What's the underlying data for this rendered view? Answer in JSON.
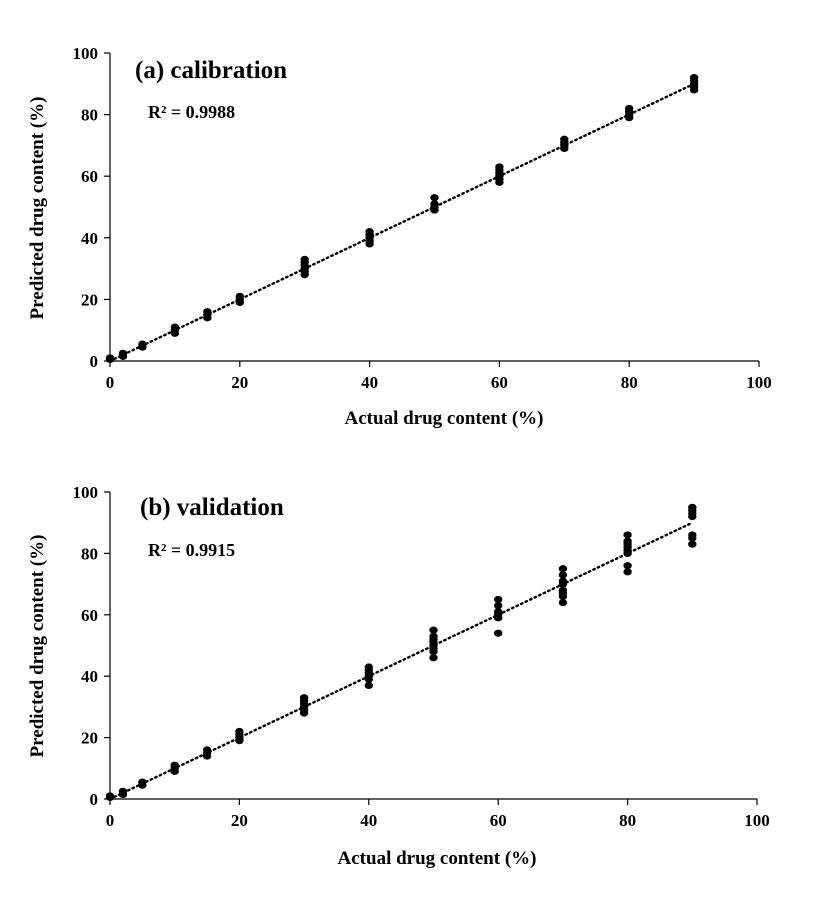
{
  "chart_data": [
    {
      "type": "scatter",
      "title": "(a) calibration",
      "annotation": "R² = 0.9988",
      "xlabel": "Actual drug content (%)",
      "ylabel": "Predicted drug content (%)",
      "xlim": [
        0,
        100
      ],
      "ylim": [
        0,
        100
      ],
      "xticks": [
        "0",
        "20",
        "40",
        "60",
        "80",
        "100"
      ],
      "yticks": [
        "0",
        "20",
        "40",
        "60",
        "80",
        "100"
      ],
      "grid": false,
      "trendline": {
        "style": "dotted",
        "x": [
          0,
          90
        ],
        "y": [
          0,
          90
        ]
      },
      "series": [
        {
          "color": "#000000",
          "points": [
            [
              0,
              0.5
            ],
            [
              0,
              1
            ],
            [
              2,
              1.5
            ],
            [
              2,
              2.5
            ],
            [
              5,
              4.5
            ],
            [
              5,
              5.5
            ],
            [
              10,
              9
            ],
            [
              10,
              10
            ],
            [
              10,
              11
            ],
            [
              15,
              14
            ],
            [
              15,
              15
            ],
            [
              15,
              16
            ],
            [
              20,
              19
            ],
            [
              20,
              20
            ],
            [
              20,
              21
            ],
            [
              30,
              28
            ],
            [
              30,
              29
            ],
            [
              30,
              30
            ],
            [
              30,
              31
            ],
            [
              30,
              32
            ],
            [
              30,
              33
            ],
            [
              40,
              38
            ],
            [
              40,
              39
            ],
            [
              40,
              40
            ],
            [
              40,
              41
            ],
            [
              40,
              42
            ],
            [
              50,
              49
            ],
            [
              50,
              50
            ],
            [
              50,
              51
            ],
            [
              50,
              53
            ],
            [
              60,
              58
            ],
            [
              60,
              59
            ],
            [
              60,
              60
            ],
            [
              60,
              61
            ],
            [
              60,
              62
            ],
            [
              60,
              63
            ],
            [
              70,
              69
            ],
            [
              70,
              70
            ],
            [
              70,
              71
            ],
            [
              70,
              72
            ],
            [
              80,
              79
            ],
            [
              80,
              80
            ],
            [
              80,
              81
            ],
            [
              80,
              82
            ],
            [
              90,
              88
            ],
            [
              90,
              89
            ],
            [
              90,
              90
            ],
            [
              90,
              91
            ],
            [
              90,
              92
            ]
          ]
        }
      ]
    },
    {
      "type": "scatter",
      "title": "(b) validation",
      "annotation": "R² = 0.9915",
      "xlabel": "Actual drug content (%)",
      "ylabel": "Predicted drug content (%)",
      "xlim": [
        0,
        100
      ],
      "ylim": [
        0,
        100
      ],
      "xticks": [
        "0",
        "20",
        "40",
        "60",
        "80",
        "100"
      ],
      "yticks": [
        "0",
        "20",
        "40",
        "60",
        "80",
        "100"
      ],
      "grid": false,
      "trendline": {
        "style": "dotted",
        "x": [
          0,
          90
        ],
        "y": [
          0,
          90
        ]
      },
      "series": [
        {
          "color": "#000000",
          "points": [
            [
              0,
              0.5
            ],
            [
              0,
              1
            ],
            [
              2,
              1.5
            ],
            [
              2,
              2.5
            ],
            [
              5,
              4.5
            ],
            [
              5,
              5.5
            ],
            [
              10,
              9
            ],
            [
              10,
              10
            ],
            [
              10,
              11
            ],
            [
              15,
              14
            ],
            [
              15,
              15
            ],
            [
              15,
              16
            ],
            [
              20,
              19
            ],
            [
              20,
              20
            ],
            [
              20,
              21
            ],
            [
              20,
              22
            ],
            [
              30,
              28
            ],
            [
              30,
              29
            ],
            [
              30,
              30
            ],
            [
              30,
              31
            ],
            [
              30,
              32
            ],
            [
              30,
              33
            ],
            [
              40,
              37
            ],
            [
              40,
              39
            ],
            [
              40,
              40
            ],
            [
              40,
              41
            ],
            [
              40,
              42
            ],
            [
              40,
              43
            ],
            [
              50,
              46
            ],
            [
              50,
              48
            ],
            [
              50,
              49
            ],
            [
              50,
              50
            ],
            [
              50,
              51
            ],
            [
              50,
              52
            ],
            [
              50,
              53
            ],
            [
              50,
              55
            ],
            [
              60,
              54
            ],
            [
              60,
              59
            ],
            [
              60,
              60
            ],
            [
              60,
              61
            ],
            [
              60,
              63
            ],
            [
              60,
              65
            ],
            [
              70,
              64
            ],
            [
              70,
              66
            ],
            [
              70,
              67
            ],
            [
              70,
              68
            ],
            [
              70,
              70
            ],
            [
              70,
              71
            ],
            [
              70,
              73
            ],
            [
              70,
              75
            ],
            [
              80,
              74
            ],
            [
              80,
              76
            ],
            [
              80,
              80
            ],
            [
              80,
              81
            ],
            [
              80,
              82
            ],
            [
              80,
              83
            ],
            [
              80,
              84
            ],
            [
              80,
              86
            ],
            [
              90,
              83
            ],
            [
              90,
              85
            ],
            [
              90,
              86
            ],
            [
              90,
              92
            ],
            [
              90,
              93
            ],
            [
              90,
              94
            ],
            [
              90,
              95
            ]
          ]
        }
      ]
    }
  ]
}
